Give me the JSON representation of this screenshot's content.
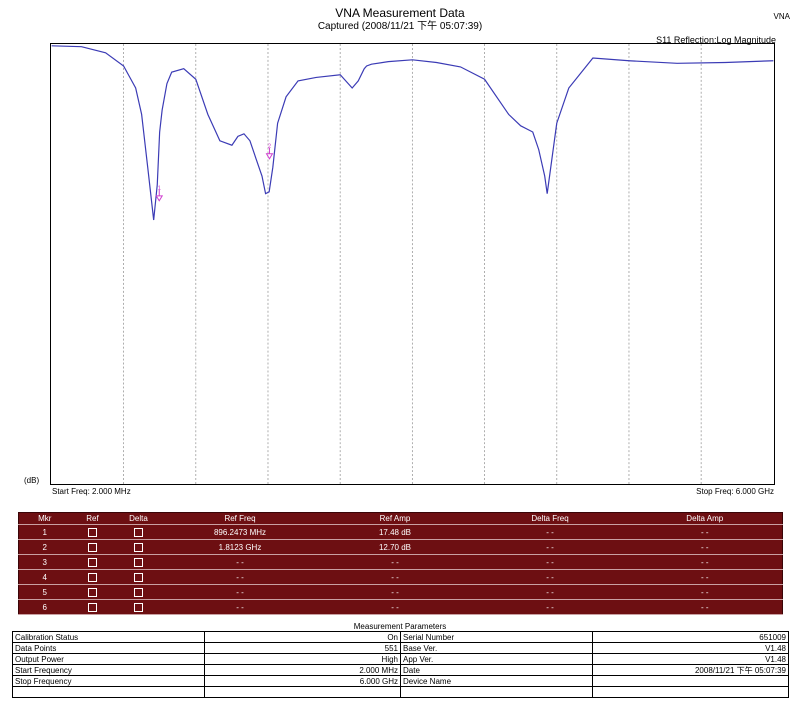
{
  "header": {
    "title": "VNA Measurement Data",
    "subtitle": "Captured  (2008/11/21 下午 05:07:39)",
    "brand": "VNA",
    "parameter": "S11 Reflection:Log Magnitude",
    "unit": "(dB)",
    "start_label": "Start Freq: 2.000 MHz",
    "stop_label": "Stop Freq: 6.000 GHz"
  },
  "colors": {
    "trace": "#3b3bb5",
    "marker": "#d040d0",
    "table_bg": "#6d0f12"
  },
  "chart_data": {
    "type": "line",
    "xlabel": "",
    "ylabel": "(dB)",
    "xlim": [
      0.002,
      6.0
    ],
    "x_unit": "GHz",
    "ylim": [
      -50,
      0
    ],
    "grid": "vertical",
    "gridlines_x": [
      0.6,
      1.2,
      1.8,
      2.4,
      3.0,
      3.6,
      4.2,
      4.8,
      5.4
    ],
    "series": [
      {
        "x": [
          0.002,
          0.25,
          0.45,
          0.6,
          0.7,
          0.75,
          0.8,
          0.85,
          0.88,
          0.9,
          0.92,
          0.96,
          1.0,
          1.1,
          1.2,
          1.3,
          1.4,
          1.5,
          1.55,
          1.6,
          1.65,
          1.7,
          1.75,
          1.78,
          1.81,
          1.84,
          1.88,
          1.95,
          2.05,
          2.2,
          2.4,
          2.5,
          2.55,
          2.6,
          2.62,
          2.66,
          2.8,
          3.0,
          3.2,
          3.4,
          3.6,
          3.8,
          3.9,
          4.0,
          4.05,
          4.1,
          4.12,
          4.15,
          4.2,
          4.3,
          4.5,
          4.8,
          5.2,
          5.6,
          6.0
        ],
        "y": [
          -0.2,
          -0.3,
          -1.0,
          -2.5,
          -5,
          -8,
          -14,
          -20,
          -16,
          -10,
          -7.5,
          -4.5,
          -3.2,
          -2.8,
          -4,
          -8,
          -11,
          -11.5,
          -10.5,
          -10.2,
          -11,
          -13,
          -15,
          -17,
          -16.8,
          -14,
          -9,
          -6,
          -4.2,
          -3.8,
          -3.5,
          -5,
          -4.2,
          -2.8,
          -2.5,
          -2.3,
          -2.0,
          -1.8,
          -2.1,
          -2.6,
          -4,
          -8,
          -9.3,
          -10,
          -12,
          -15,
          -17,
          -14,
          -9,
          -5,
          -1.6,
          -1.9,
          -2.2,
          -2.1,
          -1.9
        ]
      }
    ],
    "markers": [
      {
        "id": "1",
        "x": 0.8962473,
        "y": -17.48
      },
      {
        "id": "2",
        "x": 1.8123,
        "y": -12.7
      }
    ]
  },
  "marker_table": {
    "headers": [
      "Mkr",
      "Ref",
      "Delta",
      "Ref Freq",
      "Ref Amp",
      "Delta Freq",
      "Delta Amp"
    ],
    "rows": [
      [
        "1",
        "",
        "",
        "896.2473 MHz",
        "17.48 dB",
        "- -",
        "- -"
      ],
      [
        "2",
        "",
        "",
        "1.8123 GHz",
        "12.70 dB",
        "- -",
        "- -"
      ],
      [
        "3",
        "",
        "",
        "- -",
        "- -",
        "- -",
        "- -"
      ],
      [
        "4",
        "",
        "",
        "- -",
        "- -",
        "- -",
        "- -"
      ],
      [
        "5",
        "",
        "",
        "- -",
        "- -",
        "- -",
        "- -"
      ],
      [
        "6",
        "",
        "",
        "- -",
        "- -",
        "- -",
        "- -"
      ]
    ]
  },
  "measurement": {
    "title": "Measurement Parameters",
    "rows": [
      [
        "Calibration Status",
        "On",
        "Serial Number",
        "651009"
      ],
      [
        "Data Points",
        "551",
        "Base Ver.",
        "V1.48"
      ],
      [
        "Output Power",
        "High",
        "App Ver.",
        "V1.48"
      ],
      [
        "Start Frequency",
        "2.000 MHz",
        "Date",
        "2008/11/21 下午 05:07:39"
      ],
      [
        "Stop Frequency",
        "6.000 GHz",
        "Device Name",
        ""
      ],
      [
        "",
        "",
        "",
        ""
      ]
    ]
  }
}
